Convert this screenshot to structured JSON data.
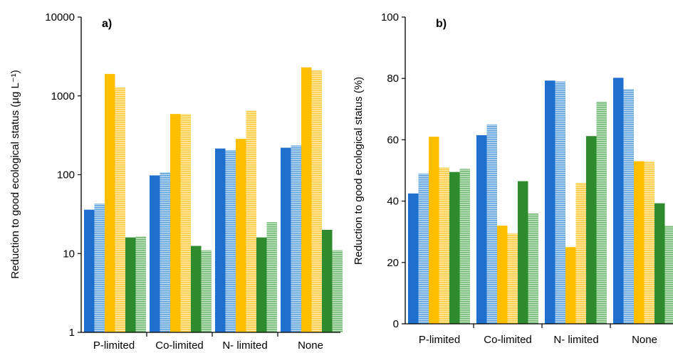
{
  "colors": {
    "blue": "#1f6fcf",
    "blue_hatched": "#8cbde6",
    "orange": "#ffbf00",
    "orange_hatched": "#ffd970",
    "green": "#2e8b2e",
    "green_hatched": "#8fc98f"
  },
  "chart_data": [
    {
      "type": "bar",
      "panel_label": "a)",
      "ylabel": "Reduction to good ecological status  (µg L⁻¹)",
      "yscale": "log",
      "ylim": [
        1,
        10000
      ],
      "yticks": [
        "1",
        "10",
        "100",
        "1000",
        "10000"
      ],
      "categories": [
        "P-limited",
        "Co-limited",
        "N- limited",
        "None"
      ],
      "series": [
        {
          "color": "blue",
          "values": [
            36,
            98,
            215,
            220
          ]
        },
        {
          "color": "blue_hatched",
          "values": [
            43,
            107,
            205,
            235
          ]
        },
        {
          "color": "orange",
          "values": [
            1900,
            590,
            285,
            2300
          ]
        },
        {
          "color": "orange_hatched",
          "values": [
            1280,
            590,
            650,
            2100
          ]
        },
        {
          "color": "green",
          "values": [
            16,
            12.5,
            16,
            20
          ]
        },
        {
          "color": "green_hatched",
          "values": [
            16.5,
            11,
            25,
            11
          ]
        }
      ]
    },
    {
      "type": "bar",
      "panel_label": "b)",
      "ylabel": "Reduction to good ecological status (%)",
      "yscale": "linear",
      "ylim": [
        0,
        100
      ],
      "yticks": [
        "0",
        "20",
        "40",
        "60",
        "80",
        "100"
      ],
      "categories": [
        "P-limited",
        "Co-limited",
        "N- limited",
        "None"
      ],
      "series": [
        {
          "color": "blue",
          "values": [
            42.5,
            61.5,
            79.3,
            80.2
          ]
        },
        {
          "color": "blue_hatched",
          "values": [
            49,
            65,
            79,
            76.5
          ]
        },
        {
          "color": "orange",
          "values": [
            61,
            32,
            25,
            53
          ]
        },
        {
          "color": "orange_hatched",
          "values": [
            51,
            29.5,
            46,
            53
          ]
        },
        {
          "color": "green",
          "values": [
            49.5,
            46.5,
            61.2,
            39.3
          ]
        },
        {
          "color": "green_hatched",
          "values": [
            50.5,
            36,
            72.5,
            32
          ]
        }
      ]
    }
  ]
}
